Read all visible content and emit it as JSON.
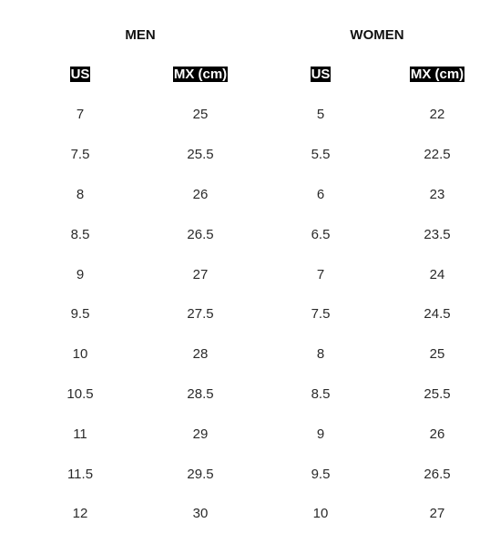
{
  "groups": {
    "men": "MEN",
    "women": "WOMEN"
  },
  "units": {
    "men_us": "US",
    "men_mx": "MX (cm)",
    "women_us": "US",
    "women_mx": "MX (cm)"
  },
  "rows": [
    {
      "men_us": "7",
      "men_mx": "25",
      "women_us": "5",
      "women_mx": "22"
    },
    {
      "men_us": "7.5",
      "men_mx": "25.5",
      "women_us": "5.5",
      "women_mx": "22.5"
    },
    {
      "men_us": "8",
      "men_mx": "26",
      "women_us": "6",
      "women_mx": "23"
    },
    {
      "men_us": "8.5",
      "men_mx": "26.5",
      "women_us": "6.5",
      "women_mx": "23.5"
    },
    {
      "men_us": "9",
      "men_mx": "27",
      "women_us": "7",
      "women_mx": "24"
    },
    {
      "men_us": "9.5",
      "men_mx": "27.5",
      "women_us": "7.5",
      "women_mx": "24.5"
    },
    {
      "men_us": "10",
      "men_mx": "28",
      "women_us": "8",
      "women_mx": "25"
    },
    {
      "men_us": "10.5",
      "men_mx": "28.5",
      "women_us": "8.5",
      "women_mx": "25.5"
    },
    {
      "men_us": "11",
      "men_mx": "29",
      "women_us": "9",
      "women_mx": "26"
    },
    {
      "men_us": "11.5",
      "men_mx": "29.5",
      "women_us": "9.5",
      "women_mx": "26.5"
    },
    {
      "men_us": "12",
      "men_mx": "30",
      "women_us": "10",
      "women_mx": "27"
    }
  ],
  "colors": {
    "unit_label_bg": "#000000",
    "unit_label_fg": "#ffffff",
    "text": "#222222"
  }
}
